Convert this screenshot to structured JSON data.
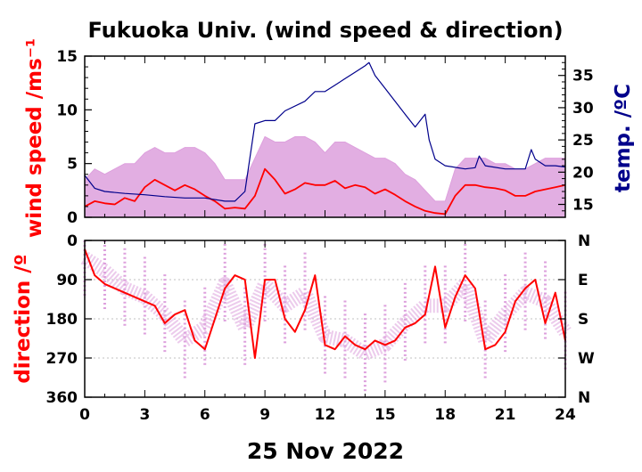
{
  "chart_data": [
    {
      "type": "line",
      "title": "Fukuoka Univ. (wind speed & direction)",
      "ylabel_left": "wind speed /ms⁻¹",
      "ylabel_right": "temp. /ºC",
      "xlim": [
        0,
        24
      ],
      "ylim_left": [
        0,
        15
      ],
      "ylim_right": [
        13,
        38
      ],
      "yticks_left": [
        "15",
        "10",
        "5",
        "0"
      ],
      "yticks_right": [
        "35",
        "30",
        "25",
        "20",
        "15"
      ],
      "grid": false,
      "series": [
        {
          "role": "wind speed (10-min mean)",
          "color": "#ff0000",
          "x": [
            0,
            0.5,
            1,
            1.5,
            2,
            2.5,
            3,
            3.5,
            4,
            4.5,
            5,
            5.5,
            6,
            6.5,
            7,
            7.5,
            8,
            8.5,
            9,
            9.5,
            10,
            10.5,
            11,
            11.5,
            12,
            12.5,
            13,
            13.5,
            14,
            14.5,
            15,
            15.5,
            16,
            16.5,
            17,
            17.5,
            18,
            18.5,
            19,
            19.5,
            20,
            20.5,
            21,
            21.5,
            22,
            22.5,
            23,
            23.5,
            24
          ],
          "values": [
            1.0,
            1.5,
            1.3,
            1.2,
            1.8,
            1.5,
            2.8,
            3.5,
            3.0,
            2.5,
            3.0,
            2.6,
            2.0,
            1.5,
            0.8,
            0.9,
            0.8,
            2.0,
            4.5,
            3.5,
            2.2,
            2.6,
            3.2,
            3.0,
            3.0,
            3.4,
            2.7,
            3.0,
            2.8,
            2.2,
            2.6,
            2.1,
            1.5,
            1.0,
            0.6,
            0.4,
            0.3,
            2.0,
            3.0,
            3.0,
            2.8,
            2.7,
            2.5,
            2.0,
            2.0,
            2.4,
            2.6,
            2.8,
            3.0
          ]
        },
        {
          "role": "wind speed (instantaneous)",
          "color": "#dda0dd",
          "x": [
            0,
            0.5,
            1,
            1.5,
            2,
            2.5,
            3,
            3.5,
            4,
            4.5,
            5,
            5.5,
            6,
            6.5,
            7,
            7.5,
            8,
            8.5,
            9,
            9.5,
            10,
            10.5,
            11,
            11.5,
            12,
            12.5,
            13,
            13.5,
            14,
            14.5,
            15,
            15.5,
            16,
            16.5,
            17,
            17.5,
            18,
            18.5,
            19,
            19.5,
            20,
            20.5,
            21,
            21.5,
            22,
            22.5,
            23,
            23.5,
            24
          ],
          "values": [
            3.5,
            4.5,
            4.0,
            4.5,
            5.0,
            5.0,
            6.0,
            6.5,
            6.0,
            6.0,
            6.5,
            6.5,
            6.0,
            5.0,
            3.5,
            3.5,
            3.5,
            5.5,
            7.5,
            7.0,
            7.0,
            7.5,
            7.5,
            7.0,
            6.0,
            7.0,
            7.0,
            6.5,
            6.0,
            5.5,
            5.5,
            5.0,
            4.0,
            3.5,
            2.5,
            1.5,
            1.5,
            4.5,
            5.5,
            5.5,
            5.5,
            5.0,
            5.0,
            4.5,
            4.5,
            5.0,
            5.5,
            5.5,
            5.5
          ]
        },
        {
          "role": "temperature",
          "axis": "right",
          "color": "#00008b",
          "x": [
            0,
            0.5,
            1,
            2,
            3,
            4,
            5,
            6,
            7,
            7.5,
            8,
            8.5,
            9,
            9.5,
            10,
            11,
            11.5,
            12,
            12.5,
            13,
            13.5,
            14,
            14.2,
            14.5,
            15,
            15.5,
            16,
            16.5,
            17,
            17.2,
            17.5,
            18,
            19,
            19.5,
            19.7,
            20,
            21,
            22,
            22.3,
            22.5,
            23,
            23.5,
            24
          ],
          "values": [
            19.5,
            17.5,
            17.0,
            16.7,
            16.5,
            16.2,
            16.0,
            16.0,
            15.5,
            15.5,
            17.0,
            27.5,
            28.0,
            28.0,
            29.5,
            31.0,
            32.5,
            32.5,
            33.5,
            34.5,
            35.5,
            36.5,
            37.0,
            35.0,
            33.0,
            31.0,
            29.0,
            27.0,
            29.0,
            25.0,
            22.0,
            21.0,
            20.5,
            20.7,
            22.5,
            21.0,
            20.5,
            20.5,
            23.5,
            22.0,
            21.0,
            21.0,
            20.8
          ]
        }
      ]
    },
    {
      "type": "scatter",
      "ylabel_left": "direction /º",
      "xlabel": "25 Nov 2022",
      "xlim": [
        0,
        24
      ],
      "ylim": [
        0,
        360
      ],
      "yticks_left": [
        "0",
        "90",
        "180",
        "270",
        "360"
      ],
      "yticks_right": [
        "N",
        "E",
        "S",
        "W",
        "N"
      ],
      "xticks": [
        "0",
        "3",
        "6",
        "9",
        "12",
        "15",
        "18",
        "21",
        "24"
      ],
      "grid": true,
      "series": [
        {
          "role": "wind direction (10-min mean)",
          "color": "#ff0000",
          "x": [
            0,
            0.5,
            1,
            1.5,
            2,
            2.5,
            3,
            3.5,
            4,
            4.5,
            5,
            5.5,
            6,
            6.5,
            7,
            7.5,
            8,
            8.5,
            9,
            9.5,
            10,
            10.5,
            11,
            11.5,
            12,
            12.5,
            13,
            13.5,
            14,
            14.5,
            15,
            15.5,
            16,
            16.5,
            17,
            17.5,
            18,
            18.5,
            19,
            19.5,
            20,
            20.5,
            21,
            21.5,
            22,
            22.5,
            23,
            23.5,
            24
          ],
          "values": [
            20,
            80,
            100,
            110,
            120,
            130,
            140,
            150,
            190,
            170,
            160,
            230,
            250,
            180,
            110,
            80,
            90,
            270,
            90,
            90,
            180,
            210,
            160,
            80,
            240,
            250,
            220,
            240,
            250,
            230,
            240,
            230,
            200,
            190,
            170,
            60,
            200,
            130,
            80,
            110,
            250,
            240,
            210,
            140,
            110,
            90,
            190,
            120,
            230
          ]
        },
        {
          "role": "wind direction (instantaneous)",
          "color": "#dda0dd",
          "x": [
            0,
            1,
            2,
            3,
            4,
            5,
            6,
            7,
            8,
            9,
            10,
            11,
            12,
            13,
            14,
            15,
            16,
            17,
            18,
            19,
            20,
            21,
            22,
            23,
            24
          ],
          "values": [
            40,
            70,
            110,
            130,
            170,
            230,
            200,
            100,
            200,
            100,
            150,
            120,
            220,
            230,
            260,
            240,
            190,
            150,
            150,
            100,
            230,
            170,
            120,
            140,
            210
          ]
        }
      ]
    }
  ]
}
